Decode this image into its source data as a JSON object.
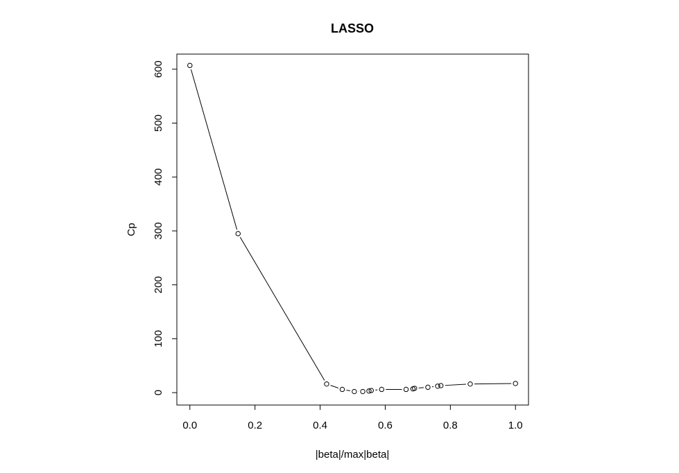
{
  "chart_data": {
    "type": "line",
    "title": "LASSO",
    "xlabel": "|beta|/max|beta|",
    "ylabel": "Cp",
    "xlim": [
      -0.04,
      1.04
    ],
    "ylim": [
      -23,
      628
    ],
    "xticks": [
      0.0,
      0.2,
      0.4,
      0.6,
      0.8,
      1.0
    ],
    "xtick_labels": [
      "0.0",
      "0.2",
      "0.4",
      "0.6",
      "0.8",
      "1.0"
    ],
    "yticks": [
      0,
      100,
      200,
      300,
      400,
      500,
      600
    ],
    "ytick_labels": [
      "0",
      "100",
      "200",
      "300",
      "400",
      "500",
      "600"
    ],
    "grid": false,
    "markers": "open-circle",
    "series": [
      {
        "x": [
          0.0,
          0.148,
          0.42,
          0.468,
          0.505,
          0.531,
          0.55,
          0.557,
          0.589,
          0.664,
          0.685,
          0.69,
          0.731,
          0.761,
          0.771,
          0.861,
          1.0
        ],
        "y": [
          607,
          295,
          16,
          6,
          2,
          2,
          3,
          4,
          6,
          6,
          7,
          8,
          10,
          12,
          13,
          16,
          17
        ]
      }
    ]
  }
}
